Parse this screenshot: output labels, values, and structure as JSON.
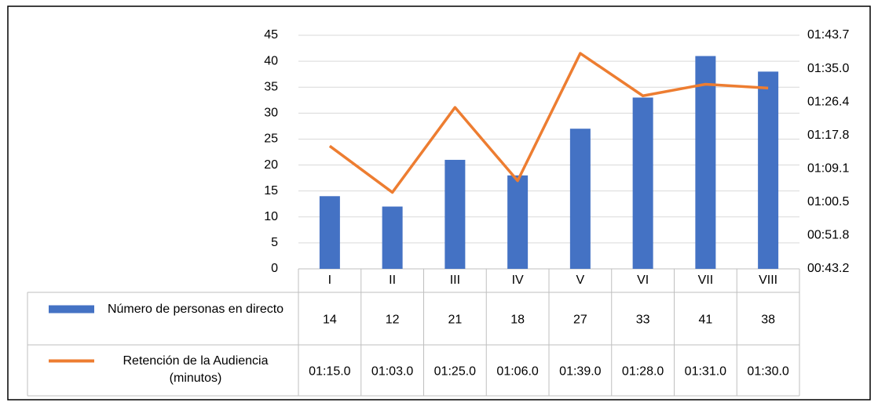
{
  "chart_data": {
    "type": "bar",
    "categories": [
      "I",
      "II",
      "III",
      "IV",
      "V",
      "VI",
      "VII",
      "VIII"
    ],
    "series": [
      {
        "name": "Número de personas en directo",
        "type": "bar",
        "color": "#4472c4",
        "values": [
          14,
          12,
          21,
          18,
          27,
          33,
          41,
          38
        ]
      },
      {
        "name": "Retención de la Audiencia (minutos)",
        "type": "line",
        "axis": "y2",
        "color": "#ed7d31",
        "values": [
          75,
          63,
          85,
          66,
          99,
          88,
          91,
          90
        ],
        "value_labels": [
          "01:15.0",
          "01:03.0",
          "01:25.0",
          "01:06.0",
          "01:39.0",
          "01:28.0",
          "01:31.0",
          "01:30.0"
        ]
      }
    ],
    "ylim": [
      0,
      45
    ],
    "yticks": [
      0,
      5,
      10,
      15,
      20,
      25,
      30,
      35,
      40,
      45
    ],
    "y2lim": [
      43.2,
      103.68
    ],
    "y2ticks": [
      {
        "value": 43.2,
        "label": "00:43.2"
      },
      {
        "value": 51.84,
        "label": "00:51.8"
      },
      {
        "value": 60.48,
        "label": "01:00.5"
      },
      {
        "value": 69.12,
        "label": "01:09.1"
      },
      {
        "value": 77.76,
        "label": "01:17.8"
      },
      {
        "value": 86.4,
        "label": "01:26.4"
      },
      {
        "value": 95.04,
        "label": "01:35.0"
      },
      {
        "value": 103.68,
        "label": "01:43.7"
      }
    ],
    "grid": true,
    "data_table": true
  }
}
